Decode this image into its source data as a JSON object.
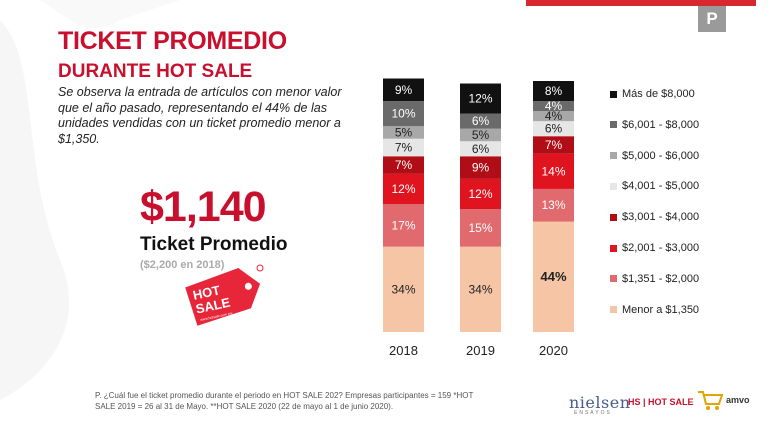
{
  "header": {
    "title_line1": "TICKET PROMEDIO",
    "title_line2": "DURANTE HOT SALE",
    "description": "Se observa la entrada de artículos con menor valor que el año pasado, representando el 44% de las unidades vendidas con un ticket promedio menor a $1,350.",
    "badge": "P"
  },
  "highlight": {
    "price": "$1,140",
    "label": "Ticket Promedio",
    "previous": "($2,200 en 2018)"
  },
  "logo": {
    "line1": "HOT",
    "line2": "SALE",
    "url": "www.hotsale.com.mx"
  },
  "colors": {
    "brand_red": "#c8102e",
    "top_bar": "#d7282f"
  },
  "chart_data": {
    "type": "bar",
    "stacked": true,
    "categories": [
      "2018",
      "2019",
      "2020"
    ],
    "series": [
      {
        "name": "Menor a $1,350",
        "color": "#f5c5a5",
        "values": [
          34,
          34,
          44
        ],
        "labels": [
          "34%",
          "34%",
          "44%"
        ]
      },
      {
        "name": "$1,351 - $2,000",
        "color": "#e06a6e",
        "values": [
          17,
          15,
          13
        ],
        "labels": [
          "17%",
          "15%",
          "13%"
        ]
      },
      {
        "name": "$2,001 - $3,000",
        "color": "#e0141f",
        "values": [
          12,
          12,
          14
        ],
        "labels": [
          "12%",
          "12%",
          "14%"
        ]
      },
      {
        "name": "$3,001 - $4,000",
        "color": "#b00d16",
        "values": [
          7,
          9,
          7
        ],
        "labels": [
          "7%",
          "9%",
          "7%"
        ]
      },
      {
        "name": "$4,001 - $5,000",
        "color": "#e6e6e6",
        "values": [
          7,
          6,
          6
        ],
        "labels": [
          "7%",
          "6%",
          "6%"
        ]
      },
      {
        "name": "$5,000 - $6,000",
        "color": "#a8a8a8",
        "values": [
          5,
          5,
          4
        ],
        "labels": [
          "5%",
          "5%",
          "4%"
        ]
      },
      {
        "name": "$6,001 - $8,000",
        "color": "#6a6a6a",
        "values": [
          10,
          6,
          4
        ],
        "labels": [
          "10%",
          "6%",
          "4%"
        ]
      },
      {
        "name": "Más de $8,000",
        "color": "#111111",
        "values": [
          9,
          12,
          8
        ],
        "labels": [
          "9%",
          "12%",
          "8%"
        ]
      }
    ],
    "ylim": [
      0,
      100
    ],
    "legend_position": "right",
    "legend_order": [
      "Más de $8,000",
      "$6,001 - $8,000",
      "$5,000 - $6,000",
      "$4,001 - $5,000",
      "$3,001 - $4,000",
      "$2,001 - $3,000",
      "$1,351 - $2,000",
      "Menor a $1,350"
    ],
    "grid": false
  },
  "footer": {
    "note": "P. ¿Cuál fue el ticket promedio durante el periodo en HOT SALE 202? Empresas participantes = 159 *HOT SALE 2019 = 26 al 31 de Mayo. **HOT SALE 2020 (22 de mayo al 1 de junio 2020).",
    "nielsen": "nielsen",
    "nielsen_sub": "ENSAYOS",
    "hs_logo": "HS | HOT SALE",
    "amvo": "amvo"
  }
}
